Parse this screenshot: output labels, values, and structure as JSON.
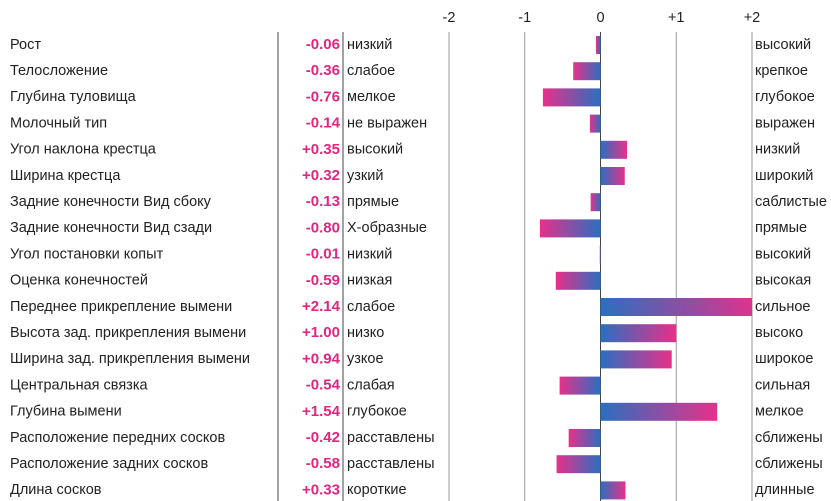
{
  "chart_data": {
    "type": "bar",
    "orientation": "horizontal",
    "categories": [
      "Рост",
      "Телосложение",
      "Глубина туловища",
      "Молочный тип",
      "Угол наклона крестца",
      "Ширина крестца",
      "Задние конечности Вид сбоку",
      "Задние конечности Вид сзади",
      "Угол постановки копыт",
      "Оценка конечностей",
      "Переднее прикрепление вымени",
      "Высота зад. прикрепления вымени",
      "Ширина зад. прикрепления вымени",
      "Центральная связка",
      "Глубина вымени",
      "Расположение передних сосков",
      "Расположение задних сосков",
      "Длина сосков"
    ],
    "values": [
      -0.06,
      -0.36,
      -0.76,
      -0.14,
      0.35,
      0.32,
      -0.13,
      -0.8,
      -0.01,
      -0.59,
      2.14,
      1.0,
      0.94,
      -0.54,
      1.54,
      -0.42,
      -0.58,
      0.33
    ],
    "value_labels": [
      "-0.06",
      "-0.36",
      "-0.76",
      "-0.14",
      "+0.35",
      "+0.32",
      "-0.13",
      "-0.80",
      "-0.01",
      "-0.59",
      "+2.14",
      "+1.00",
      "+0.94",
      "-0.54",
      "+1.54",
      "-0.42",
      "-0.58",
      "+0.33"
    ],
    "left_labels": [
      "низкий",
      "слабое",
      "мелкое",
      "не выражен",
      "высокий",
      "узкий",
      "прямые",
      "Х-образные",
      "низкий",
      "низкая",
      "слабое",
      "низко",
      "узкое",
      "слабая",
      "глубокое",
      "расставлены",
      "расставлены",
      "короткие"
    ],
    "right_labels": [
      "высокий",
      "крепкое",
      "глубокое",
      "выражен",
      "низкий",
      "широкий",
      "саблистые",
      "прямые",
      "высокий",
      "высокая",
      "сильное",
      "высоко",
      "широкое",
      "сильная",
      "мелкое",
      "сближены",
      "сближены",
      "длинные"
    ],
    "xlim": [
      -2,
      2
    ],
    "xticks": [
      -2,
      -1,
      0,
      {
        "value": 1,
        "label": "+1"
      },
      {
        "value": 2,
        "label": "+2"
      }
    ],
    "grid": true,
    "colors": {
      "near": "#2a6fc0",
      "far": "#e8308a"
    }
  }
}
